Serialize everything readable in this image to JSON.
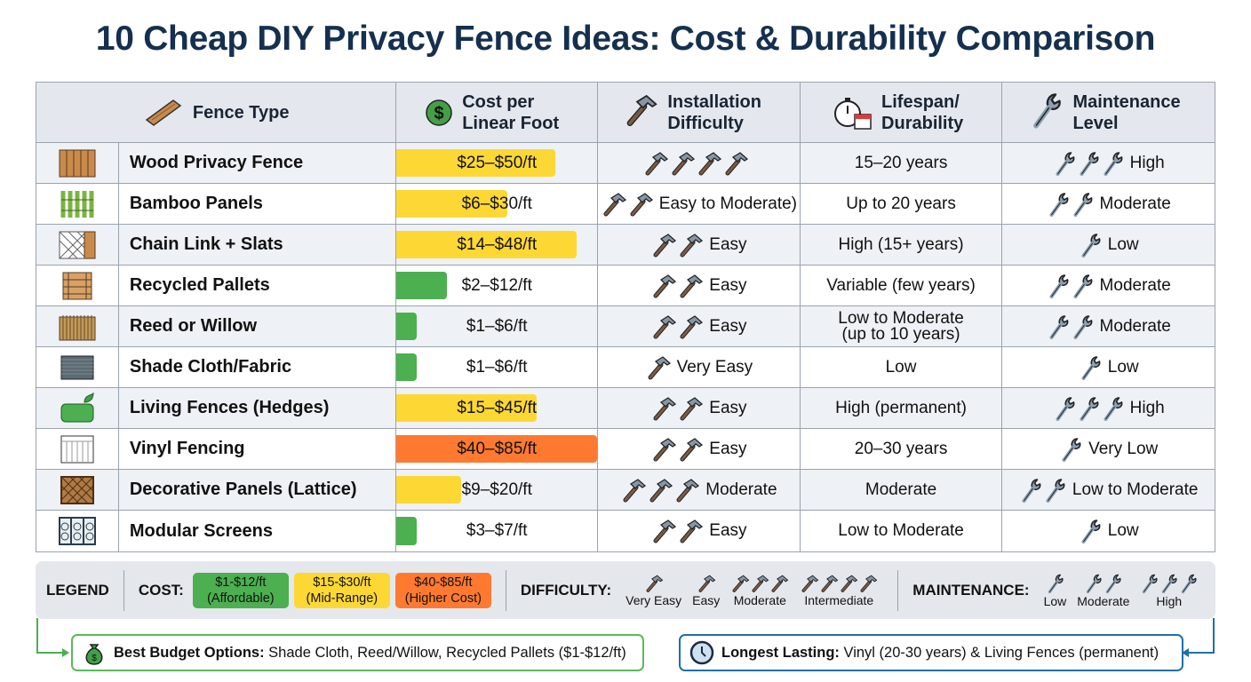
{
  "title": "10 Cheap DIY Privacy Fence Ideas: Cost & Durability Comparison",
  "colors": {
    "affordable": "#4caf50",
    "mid": "#fdd835",
    "high": "#ff7a30",
    "header_bg": "#e4e8ee",
    "title": "#15304f"
  },
  "headers": {
    "type": "Fence Type",
    "cost": "Cost per Linear Foot",
    "difficulty": "Installation Difficulty",
    "lifespan": "Lifespan/ Durability",
    "maintenance": "Maintenance Level"
  },
  "rows": [
    {
      "name": "Wood Privacy Fence",
      "cost": "$25–$50/ft",
      "cost_level": "mid",
      "cost_fill": 0.79,
      "hammers": 4,
      "difficulty": "",
      "lifespan": "15–20 years",
      "wrenches": 3,
      "maintenance": "High",
      "thumb": "wood"
    },
    {
      "name": "Bamboo Panels",
      "cost": "$6–$30/ft",
      "cost_level": "mid",
      "cost_fill": 0.55,
      "hammers": 2,
      "difficulty": "Easy to Moderate)",
      "lifespan": "Up to 20 years",
      "wrenches": 2,
      "maintenance": "Moderate",
      "thumb": "bamboo"
    },
    {
      "name": "Chain Link + Slats",
      "cost": "$14–$48/ft",
      "cost_level": "mid",
      "cost_fill": 0.9,
      "hammers": 2,
      "difficulty": "Easy",
      "lifespan": "High (15+ years)",
      "wrenches": 1,
      "maintenance": "Low",
      "thumb": "chain"
    },
    {
      "name": "Recycled Pallets",
      "cost": "$2–$12/ft",
      "cost_level": "affordable",
      "cost_fill": 0.25,
      "hammers": 2,
      "difficulty": "Easy",
      "lifespan": "Variable (few years)",
      "wrenches": 2,
      "maintenance": "Moderate",
      "thumb": "pallet"
    },
    {
      "name": "Reed or Willow",
      "cost": "$1–$6/ft",
      "cost_level": "affordable",
      "cost_fill": 0.1,
      "hammers": 2,
      "difficulty": "Easy",
      "lifespan": "Low to Moderate (up to 10 years)",
      "wrenches": 2,
      "maintenance": "Moderate",
      "thumb": "reed"
    },
    {
      "name": "Shade Cloth/Fabric",
      "cost": "$1–$6/ft",
      "cost_level": "affordable",
      "cost_fill": 0.1,
      "hammers": 1,
      "difficulty": "Very Easy",
      "lifespan": "Low",
      "wrenches": 1,
      "maintenance": "Low",
      "thumb": "cloth"
    },
    {
      "name": "Living Fences (Hedges)",
      "cost": "$15–$45/ft",
      "cost_level": "mid",
      "cost_fill": 0.7,
      "hammers": 2,
      "difficulty": "Easy",
      "lifespan": "High (permanent)",
      "wrenches": 3,
      "maintenance": "High",
      "thumb": "hedge"
    },
    {
      "name": "Vinyl Fencing",
      "cost": "$40–$85/ft",
      "cost_level": "high",
      "cost_fill": 1.0,
      "hammers": 2,
      "difficulty": "Easy",
      "lifespan": "20–30 years",
      "wrenches": 1,
      "maintenance": "Very Low",
      "thumb": "vinyl"
    },
    {
      "name": "Decorative Panels (Lattice)",
      "cost": "$9–$20/ft",
      "cost_level": "mid",
      "cost_fill": 0.32,
      "hammers": 3,
      "difficulty": "Moderate",
      "lifespan": "Moderate",
      "wrenches": 2,
      "maintenance": "Low to Moderate",
      "thumb": "lattice"
    },
    {
      "name": "Modular Screens",
      "cost": "$3–$7/ft",
      "cost_level": "affordable",
      "cost_fill": 0.1,
      "hammers": 2,
      "difficulty": "Easy",
      "lifespan": "Low to Moderate",
      "wrenches": 1,
      "maintenance": "Low",
      "thumb": "modular"
    }
  ],
  "legend": {
    "label": "LEGEND",
    "cost_label": "COST:",
    "cost_items": [
      {
        "line1": "$1-$12/ft",
        "line2": "(Affordable)",
        "level": "affordable"
      },
      {
        "line1": "$15-$30/ft",
        "line2": "(Mid-Range)",
        "level": "mid"
      },
      {
        "line1": "$40-$85/ft",
        "line2": "(Higher Cost)",
        "level": "high"
      }
    ],
    "difficulty_label": "DIFFICULTY:",
    "difficulty_items": [
      {
        "label": "Very Easy",
        "count": 1
      },
      {
        "label": "Easy",
        "count": 1
      },
      {
        "label": "Moderate",
        "count": 3
      },
      {
        "label": "Intermediate",
        "count": 4
      }
    ],
    "maintenance_label": "MAINTENANCE:",
    "maintenance_items": [
      {
        "label": "Low",
        "count": 1
      },
      {
        "label": "Moderate",
        "count": 2
      },
      {
        "label": "High",
        "count": 3
      }
    ]
  },
  "callouts": {
    "budget": {
      "bold": "Best Budget Options:",
      "text": " Shade Cloth, Reed/Willow, Recycled Pallets ($1-$12/ft)"
    },
    "lasting": {
      "bold": "Longest Lasting:",
      "text": " Vinyl (20-30 years) & Living Fences (permanent)"
    }
  }
}
